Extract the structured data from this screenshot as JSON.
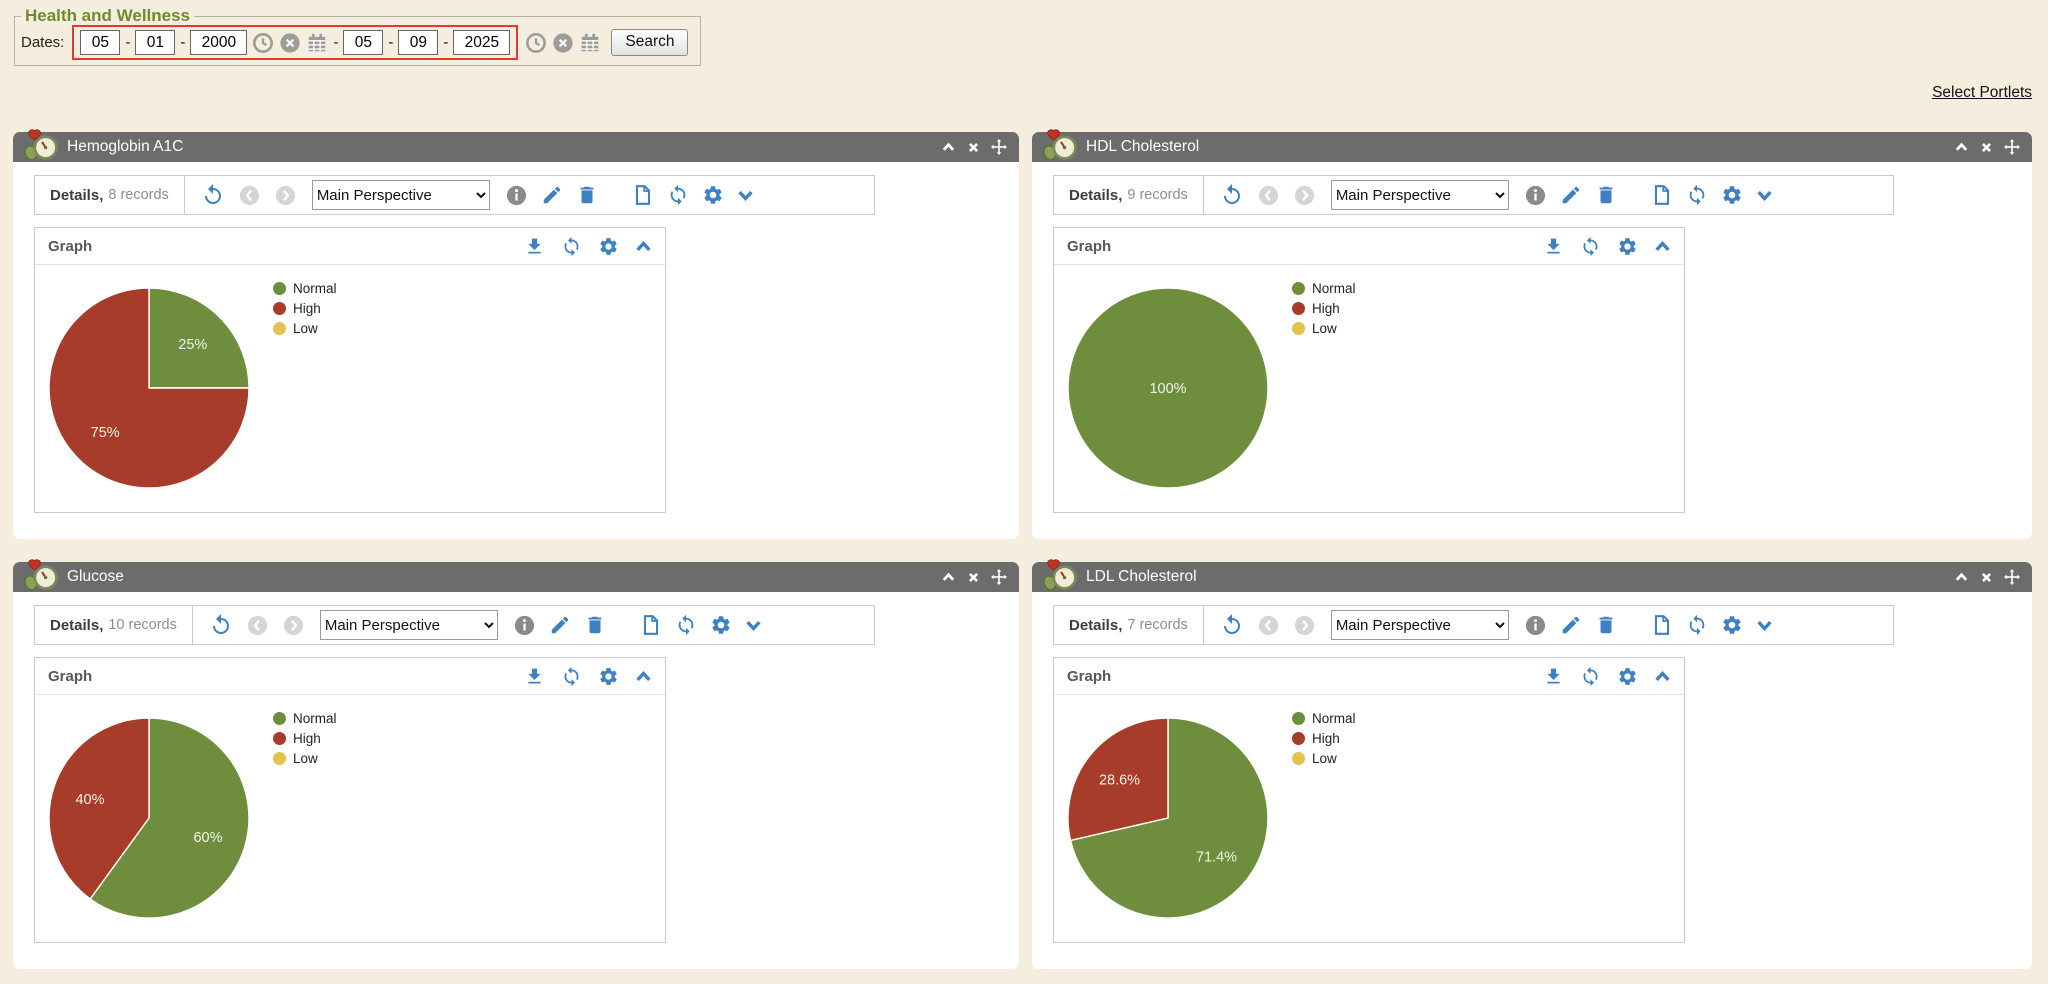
{
  "page": {
    "title": "Health and Wellness",
    "select_portlets": "Select Portlets"
  },
  "dates": {
    "label": "Dates:",
    "separator": "-",
    "from": {
      "month": "05",
      "day": "01",
      "year": "2000"
    },
    "to": {
      "month": "05",
      "day": "09",
      "year": "2025"
    },
    "search_label": "Search"
  },
  "shared": {
    "details_label": "Details,",
    "graph_label": "Graph",
    "perspective": "Main Perspective"
  },
  "legend": [
    {
      "label": "Normal",
      "color": "#6e8e3d"
    },
    {
      "label": "High",
      "color": "#a83c2b"
    },
    {
      "label": "Low",
      "color": "#e4c24f"
    }
  ],
  "portlets": [
    {
      "title": "Hemoglobin A1C",
      "records": "8 records"
    },
    {
      "title": "HDL Cholesterol",
      "records": "9 records"
    },
    {
      "title": "Glucose",
      "records": "10 records"
    },
    {
      "title": "LDL Cholesterol",
      "records": "7 records"
    }
  ],
  "chart_data": [
    {
      "type": "pie",
      "title": "Hemoglobin A1C",
      "categories": [
        "Normal",
        "High",
        "Low"
      ],
      "values": [
        25,
        75,
        0
      ],
      "labels": [
        "25%",
        "75%",
        ""
      ],
      "colors": [
        "#6e8e3d",
        "#a83c2b",
        "#e4c24f"
      ],
      "legend_position": "right"
    },
    {
      "type": "pie",
      "title": "HDL Cholesterol",
      "categories": [
        "Normal",
        "High",
        "Low"
      ],
      "values": [
        100,
        0,
        0
      ],
      "labels": [
        "100%",
        "",
        ""
      ],
      "colors": [
        "#6e8e3d",
        "#a83c2b",
        "#e4c24f"
      ],
      "legend_position": "right"
    },
    {
      "type": "pie",
      "title": "Glucose",
      "categories": [
        "Normal",
        "High",
        "Low"
      ],
      "values": [
        60,
        40,
        0
      ],
      "labels": [
        "60%",
        "40%",
        ""
      ],
      "colors": [
        "#6e8e3d",
        "#a83c2b",
        "#e4c24f"
      ],
      "legend_position": "right"
    },
    {
      "type": "pie",
      "title": "LDL Cholesterol",
      "categories": [
        "Normal",
        "High",
        "Low"
      ],
      "values": [
        71.4,
        28.6,
        0
      ],
      "labels": [
        "71.4%",
        "28.6%",
        ""
      ],
      "colors": [
        "#6e8e3d",
        "#a83c2b",
        "#e4c24f"
      ],
      "legend_position": "right"
    }
  ],
  "icons": {
    "portlet_header": [
      "collapse-icon",
      "close-icon",
      "move-icon"
    ],
    "details_toolbar": [
      "undo-icon",
      "prev-icon",
      "next-icon",
      "info-icon",
      "edit-icon",
      "delete-icon",
      "document-icon",
      "refresh-icon",
      "settings-icon",
      "collapse-toggle-icon"
    ],
    "graph_toolbar": [
      "download-icon",
      "refresh-icon",
      "settings-icon",
      "collapse-icon"
    ],
    "date_row": [
      "clock-icon",
      "clear-icon",
      "calendar-icon"
    ]
  },
  "colors": {
    "page_bg": "#f5edde",
    "title_green": "#6f8b2e",
    "header_gray": "#6c6c6c",
    "accent_blue": "#3f80c2",
    "highlight_red": "#e23b2e",
    "pie_green": "#6e8e3d",
    "pie_red": "#a83c2b",
    "pie_yellow": "#e4c24f"
  }
}
